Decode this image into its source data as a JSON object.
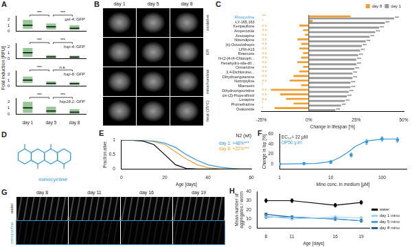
{
  "chart_data": [
    {
      "panel": "A",
      "type": "dot",
      "title": "gst-4::GFP",
      "ylabel": "Fold induction [RFU]",
      "categories": [
        "day 1",
        "day 5",
        "day 8"
      ],
      "values": [
        1.0,
        0.75,
        0.5
      ],
      "ranges": [
        [
          0.4,
          1.9
        ],
        [
          0.3,
          1.3
        ],
        [
          0.2,
          1.0
        ]
      ],
      "color": "#3c9a3c",
      "ylim": [
        0,
        2.6
      ],
      "yticks": [
        0,
        1,
        2
      ],
      "grid": false,
      "tick_labels": "y",
      "comparisons": [
        {
          "between": [
            "day 1",
            "day 5"
          ],
          "label": "***"
        },
        {
          "between": [
            "day 5",
            "day 8"
          ],
          "label": "***"
        }
      ]
    },
    {
      "panel": "A",
      "type": "dot",
      "title": "hsp-4::GFP",
      "categories": [
        "day 1",
        "day 5",
        "day 8"
      ],
      "values": [
        1.0,
        0.3,
        0.25
      ],
      "ranges": [
        [
          0.3,
          1.8
        ],
        [
          0.1,
          0.6
        ],
        [
          0.05,
          0.5
        ]
      ],
      "color": "#3c9a3c",
      "ylim": [
        0,
        2.6
      ],
      "yticks": [
        0,
        1,
        2
      ],
      "grid": false,
      "tick_labels": "y",
      "comparisons": [
        {
          "between": [
            "day 1",
            "day 5"
          ],
          "label": "***"
        },
        {
          "between": [
            "day 5",
            "day 8"
          ],
          "label": "***"
        }
      ]
    },
    {
      "panel": "A",
      "type": "dot",
      "title": "hsp-6::GFP",
      "categories": [
        "day 1",
        "day 5",
        "day 8"
      ],
      "values": [
        1.0,
        0.45,
        0.4
      ],
      "ranges": [
        [
          0.5,
          1.6
        ],
        [
          0.2,
          0.8
        ],
        [
          0.2,
          0.7
        ]
      ],
      "color": "#3c9a3c",
      "ylim": [
        0,
        2.6
      ],
      "yticks": [
        0,
        1,
        2
      ],
      "grid": false,
      "tick_labels": "y",
      "comparisons": [
        {
          "between": [
            "day 1",
            "day 5"
          ],
          "label": "***"
        },
        {
          "between": [
            "day 5",
            "day 8"
          ],
          "label": "n.s."
        }
      ]
    },
    {
      "panel": "A",
      "type": "dot",
      "title": "hsp16.2::GFP",
      "categories": [
        "day 1",
        "day 5",
        "day 8"
      ],
      "values": [
        1.0,
        0.5,
        0.3
      ],
      "ranges": [
        [
          0.2,
          2.0
        ],
        [
          0.1,
          1.2
        ],
        [
          0.05,
          0.8
        ]
      ],
      "color": "#3c9a3c",
      "ylim": [
        0,
        2.6
      ],
      "yticks": [
        0,
        1,
        2
      ],
      "grid": false,
      "tick_labels": true,
      "comparisons": [
        {
          "between": [
            "day 1",
            "day 5"
          ],
          "label": "***"
        },
        {
          "between": [
            "day 5",
            "day 8"
          ],
          "label": "***"
        }
      ]
    },
    {
      "panel": "C",
      "type": "bar",
      "orientation": "horizontal",
      "xlabel": "Change in lifespan [%]",
      "legend": "top right",
      "grid": false,
      "categories": [
        "Minocycline",
        "LY-165,163",
        "Kenpaullone",
        "Amperozide",
        "Amoxapine",
        "Nitrendipine",
        "(±)-Octoclothepin",
        "LFM-A13",
        "Rotenone",
        "N-(2-[4-(4-Chloroph...",
        "Hexahydro-sila-dif...",
        "Cinnarizine",
        "3,4-Dichloroiso...",
        "Dihydroergotamine",
        "Nortriptyline",
        "Mianserin",
        "Dihydroergocristine",
        "cis-(Z)-Flupenthixol",
        "Loxapine",
        "Promethazine",
        "Oxatomide"
      ],
      "series": [
        {
          "name": "day 8",
          "color": "#f0a030",
          "values": [
            22,
            2,
            -5,
            -3,
            -2,
            -6,
            -4,
            -5,
            -3,
            -4,
            -6,
            -3,
            -5,
            -8,
            -10,
            -4,
            -20,
            -15,
            -12,
            -8,
            -18
          ],
          "significance": [
            "***",
            "*",
            "n.s.",
            "n.s.",
            "n.s.",
            "n.s.",
            "n.s.",
            "n.s.",
            "n.s.",
            "n.s.",
            "n.s.",
            "n.s.",
            "n.s.",
            "n.s.",
            "n.s.",
            "*",
            "n.s.",
            "n.s.",
            "n.s.",
            "*",
            "*"
          ]
        },
        {
          "name": "day 1",
          "color": "#999999",
          "values": [
            45,
            40,
            37,
            35,
            32,
            30,
            28,
            27,
            26,
            25,
            25,
            24,
            23,
            23,
            22,
            22,
            21,
            20,
            19,
            17,
            14
          ],
          "significance": [
            "***",
            "***",
            "***",
            "***",
            "***",
            "***",
            "***",
            "***",
            "***",
            "***",
            "***",
            "***",
            "***",
            "***",
            "***",
            "***",
            "***",
            "***",
            "***",
            "***",
            "***"
          ]
        }
      ],
      "xlim": [
        -25,
        50
      ],
      "xticks": [
        {
          "value": -25,
          "label": "-25%"
        },
        {
          "value": 0,
          "label": "0%"
        },
        {
          "value": 25,
          "label": "25%"
        },
        {
          "value": 50,
          "label": "50%"
        }
      ]
    },
    {
      "panel": "E",
      "type": "line",
      "title": "N2 (wt)",
      "xlabel": "Age [days]",
      "ylabel": "Fraction alive",
      "legend": "top right",
      "grid": false,
      "line_style": "solid",
      "x": [
        0,
        5,
        10,
        15,
        20,
        25,
        30,
        35,
        40,
        45,
        50,
        55,
        60
      ],
      "series": [
        {
          "color": "#000000",
          "values": [
            1,
            1,
            0.97,
            0.85,
            0.5,
            0.15,
            0.02,
            0,
            0,
            0,
            0,
            0,
            0
          ]
        },
        {
          "name": "day 1: +48%***",
          "color": "#3399dd",
          "values": [
            1,
            1,
            1,
            0.97,
            0.9,
            0.75,
            0.5,
            0.3,
            0.15,
            0.07,
            0.03,
            0,
            0
          ]
        },
        {
          "name": "day 8: +22%***",
          "color": "#f0a030",
          "values": [
            1,
            1,
            1,
            0.95,
            0.85,
            0.6,
            0.35,
            0.15,
            0.05,
            0.01,
            0,
            0,
            0
          ]
        }
      ],
      "xlim": [
        0,
        60
      ],
      "xticks": [
        0,
        20,
        40,
        60
      ],
      "ylim": [
        0,
        1
      ],
      "yticks": [
        0,
        0.5,
        1
      ]
    },
    {
      "panel": "F",
      "type": "scatter",
      "xlabel": "Mino conc. in medium [µM]",
      "ylabel": "Change in lsp [%]",
      "log": "x",
      "grid": false,
      "annotations": [
        "EC₅₀= 22 µM",
        "OP50 γ-irr."
      ],
      "series": [
        {
          "type": "scatter",
          "marker": "circle",
          "color": "#3399dd",
          "x": [
            1,
            3,
            10,
            25,
            50,
            100,
            200
          ],
          "values": [
            0,
            1,
            4,
            18,
            44,
            50,
            48
          ],
          "errors": [
            2,
            2,
            3,
            4,
            5,
            4,
            5
          ]
        },
        {
          "type": "line",
          "line_style": "solid",
          "color": "#3399dd",
          "x": [
            1,
            3,
            5,
            10,
            15,
            22,
            30,
            50,
            100,
            200
          ],
          "values": [
            0,
            0.5,
            1,
            5,
            13,
            24,
            35,
            46,
            49.5,
            50
          ]
        }
      ],
      "xlim": [
        1,
        300
      ],
      "xticks": [
        1,
        10,
        100
      ],
      "ylim": [
        -10,
        60
      ],
      "yticks": [
        0,
        20,
        40,
        60
      ]
    },
    {
      "panel": "H",
      "type": "line",
      "xlabel": "Age [days]",
      "ylabel": [
        "Mean number of",
        "aggregates / worm"
      ],
      "legend": "right",
      "grid": false,
      "marker": "circle",
      "line_style": "solid",
      "x": [
        8,
        11,
        16,
        19
      ],
      "series": [
        {
          "name": "water",
          "color": "#000000",
          "values": [
            30,
            30,
            25,
            28
          ],
          "errors": [
            2,
            2,
            2,
            2
          ]
        },
        {
          "name": "day 1 mino",
          "color": "#9fd3f0",
          "values": [
            13,
            10,
            12,
            11
          ],
          "errors": [
            1.5,
            1.5,
            1.5,
            1.5
          ]
        },
        {
          "name": "day 5 mino",
          "color": "#4aa3df",
          "values": [
            12,
            12,
            10,
            8
          ],
          "errors": [
            1.5,
            1.5,
            1.5,
            1.5
          ]
        },
        {
          "name": "day 8 mino",
          "color": "#1d5fa0",
          "values": [
            15,
            12,
            10,
            8
          ],
          "errors": [
            1.5,
            1.5,
            1.5,
            1.5
          ]
        }
      ],
      "xlim": [
        7,
        20
      ],
      "xticks": [
        8,
        11,
        16,
        19
      ],
      "ylim": [
        0,
        40
      ],
      "yticks": [
        0,
        10,
        20,
        30,
        40
      ]
    }
  ],
  "images": [
    {
      "panel": "B",
      "columns": [
        "day 1",
        "day 5",
        "day 8"
      ],
      "rows": [
        "oxidative",
        "ER",
        "mitochondrial",
        "heat (35°C)"
      ]
    },
    {
      "panel": "D",
      "label": "minocycline"
    },
    {
      "panel": "G",
      "columns": [
        "day 8",
        "day 11",
        "day 16",
        "day 19"
      ],
      "rows": [
        "water",
        "minocycline"
      ]
    }
  ]
}
